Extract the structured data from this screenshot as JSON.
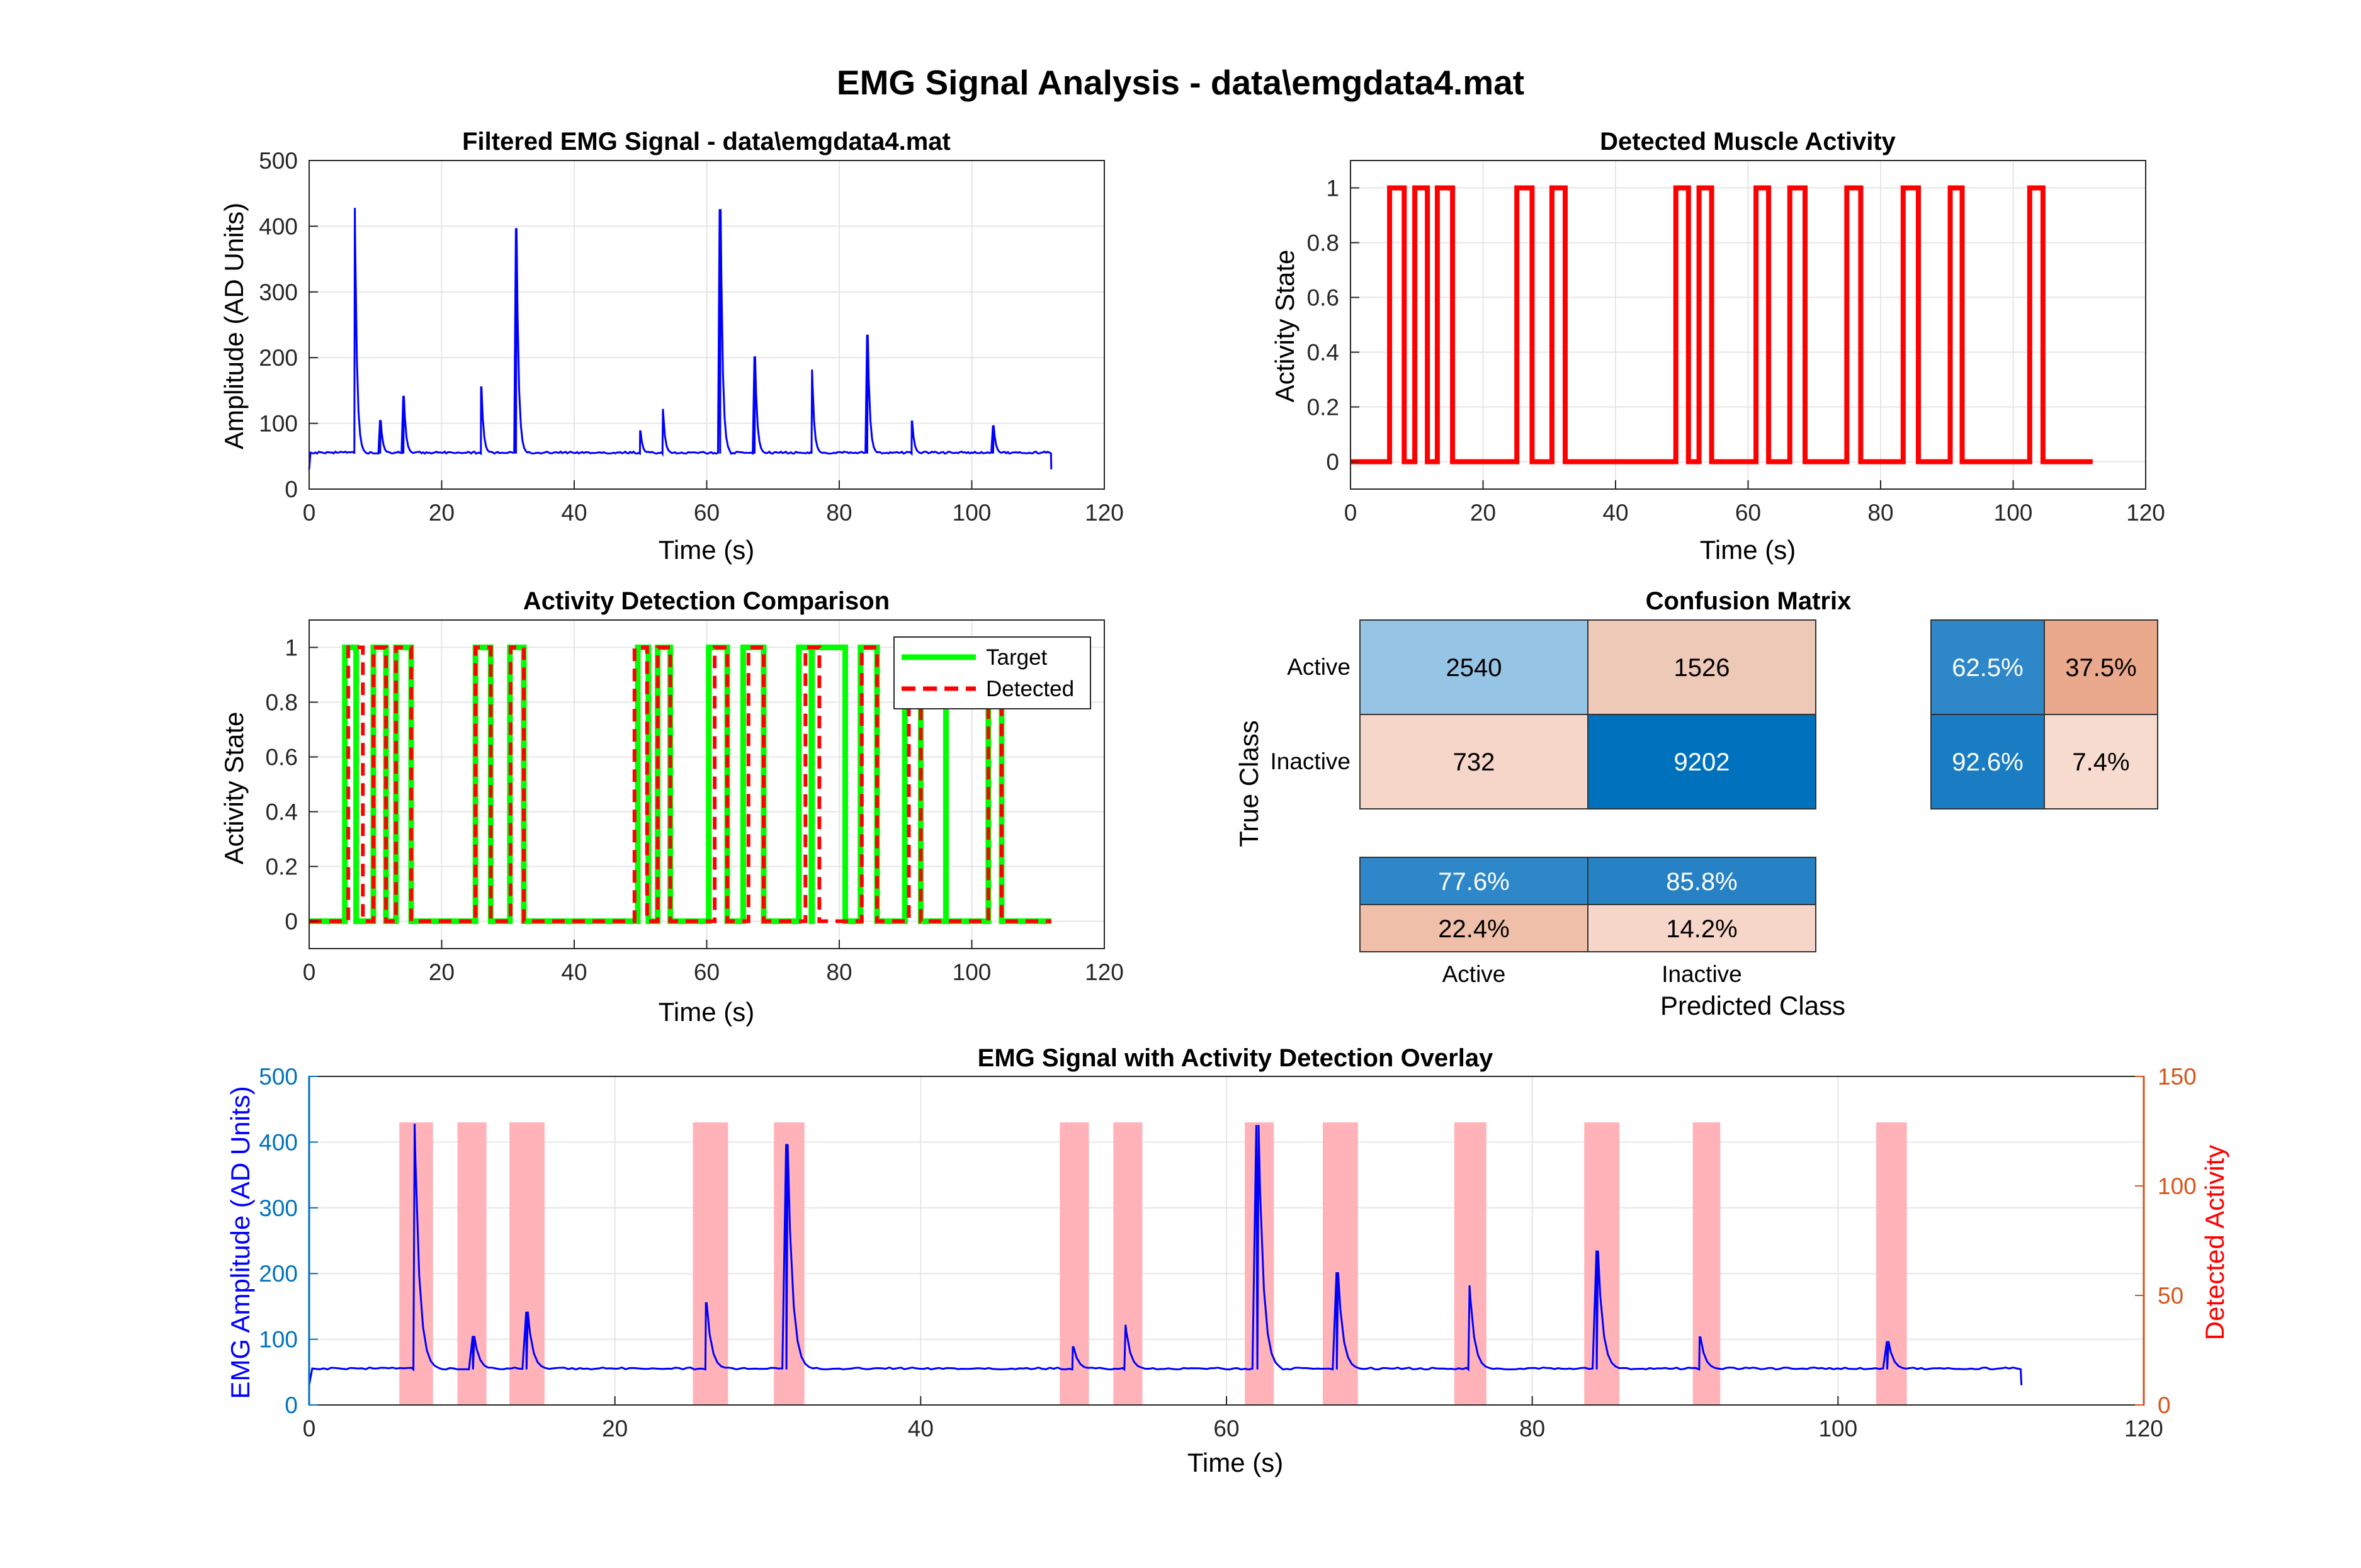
{
  "figure": {
    "title": "EMG Signal Analysis - data\\emgdata4.mat"
  },
  "colors": {
    "signal": "#0000ff",
    "activity": "#ff0000",
    "target": "#00ff00",
    "detected": "#ff0000",
    "overlay_fill": "#ffb3b8",
    "overlay_signal": "#5a00d6",
    "left_axis": "#0072bd",
    "right_axis": "#d95319",
    "right_label": "#ff0000",
    "left_label": "#0000ff",
    "grid": "#e6e6e6",
    "axis": "#262626"
  },
  "panels": {
    "filtered": {
      "title": "Filtered EMG Signal - data\\emgdata4.mat",
      "xlabel": "Time (s)",
      "ylabel": "Amplitude (AD Units)",
      "xticks": [
        "0",
        "20",
        "40",
        "60",
        "80",
        "100",
        "120"
      ],
      "yticks": [
        "0",
        "100",
        "200",
        "300",
        "400",
        "500"
      ]
    },
    "activity": {
      "title": "Detected Muscle Activity",
      "xlabel": "Time (s)",
      "ylabel": "Activity State",
      "xticks": [
        "0",
        "20",
        "40",
        "60",
        "80",
        "100",
        "120"
      ],
      "yticks": [
        "0",
        "0.2",
        "0.4",
        "0.6",
        "0.8",
        "1"
      ]
    },
    "comparison": {
      "title": "Activity Detection Comparison",
      "xlabel": "Time (s)",
      "ylabel": "Activity State",
      "xticks": [
        "0",
        "20",
        "40",
        "60",
        "80",
        "100",
        "120"
      ],
      "yticks": [
        "0",
        "0.2",
        "0.4",
        "0.6",
        "0.8",
        "1"
      ],
      "legend": {
        "target": "Target",
        "detected": "Detected"
      }
    },
    "confusion": {
      "title": "Confusion Matrix",
      "row_labels": [
        "Active",
        "Inactive"
      ],
      "col_labels": [
        "Active",
        "Inactive"
      ],
      "ylabel": "True Class",
      "xlabel": "Predicted Class",
      "cells": [
        [
          "2540",
          "1526"
        ],
        [
          "732",
          "9202"
        ]
      ],
      "row_summary": [
        [
          "62.5%",
          "37.5%"
        ],
        [
          "92.6%",
          "7.4%"
        ]
      ],
      "col_summary": [
        [
          "77.6%",
          "85.8%"
        ],
        [
          "22.4%",
          "14.2%"
        ]
      ]
    },
    "overlay": {
      "title": "EMG Signal with Activity Detection Overlay",
      "xlabel": "Time (s)",
      "ylabel_left": "EMG Amplitude (AD Units)",
      "ylabel_right": "Detected Activity",
      "xticks": [
        "0",
        "20",
        "40",
        "60",
        "80",
        "100",
        "120"
      ],
      "yticks_left": [
        "0",
        "100",
        "200",
        "300",
        "400",
        "500"
      ],
      "yticks_right": [
        "0",
        "50",
        "100",
        "150"
      ]
    }
  },
  "chart_data": [
    {
      "type": "line",
      "title": "Filtered EMG Signal - data\\emgdata4.mat",
      "xlabel": "Time (s)",
      "ylabel": "Amplitude (AD Units)",
      "xlim": [
        0,
        120
      ],
      "ylim": [
        0,
        500
      ],
      "grid": true,
      "series": [
        {
          "baseline": 54,
          "end_time": 112,
          "peaks": [
            {
              "x": 6.9,
              "y": 428
            },
            {
              "x": 10.8,
              "y": 105
            },
            {
              "x": 14.3,
              "y": 142
            },
            {
              "x": 26.0,
              "y": 155
            },
            {
              "x": 31.3,
              "y": 397
            },
            {
              "x": 50.0,
              "y": 88
            },
            {
              "x": 53.4,
              "y": 122
            },
            {
              "x": 62.1,
              "y": 426
            },
            {
              "x": 67.3,
              "y": 202
            },
            {
              "x": 75.9,
              "y": 182
            },
            {
              "x": 84.3,
              "y": 235
            },
            {
              "x": 91.0,
              "y": 103
            },
            {
              "x": 103.3,
              "y": 97
            }
          ]
        }
      ]
    },
    {
      "type": "line",
      "title": "Detected Muscle Activity",
      "xlabel": "Time (s)",
      "ylabel": "Activity State",
      "xlim": [
        0,
        120
      ],
      "ylim": [
        -0.1,
        1.1
      ],
      "grid": true,
      "end_time": 112,
      "series": [
        {
          "segments_on": [
            [
              5.9,
              8.1
            ],
            [
              9.7,
              11.6
            ],
            [
              13.1,
              15.4
            ],
            [
              25.1,
              27.4
            ],
            [
              30.4,
              32.4
            ],
            [
              49.1,
              51.0
            ],
            [
              52.6,
              54.5
            ],
            [
              61.2,
              63.1
            ],
            [
              66.3,
              68.6
            ],
            [
              74.9,
              77.0
            ],
            [
              83.4,
              85.7
            ],
            [
              90.5,
              92.3
            ],
            [
              102.5,
              104.5
            ]
          ]
        }
      ]
    },
    {
      "type": "line",
      "title": "Activity Detection Comparison",
      "xlabel": "Time (s)",
      "ylabel": "Activity State",
      "xlim": [
        0,
        120
      ],
      "ylim": [
        -0.1,
        1.1
      ],
      "grid": true,
      "legend": "top-right",
      "end_time": 112,
      "series": [
        {
          "name": "Target",
          "segments_on": [
            [
              5.4,
              7.1
            ],
            [
              9.7,
              11.6
            ],
            [
              13.1,
              15.4
            ],
            [
              25.1,
              27.4
            ],
            [
              30.3,
              32.4
            ],
            [
              49.6,
              51.2
            ],
            [
              52.6,
              54.5
            ],
            [
              60.3,
              63.1
            ],
            [
              65.5,
              68.6
            ],
            [
              73.9,
              75.8
            ],
            [
              75.9,
              80.9
            ],
            [
              83.2,
              85.7
            ],
            [
              89.9,
              92.3
            ],
            [
              96.1,
              96.1
            ],
            [
              102.5,
              104.5
            ]
          ]
        },
        {
          "name": "Detected",
          "segments_on": [
            [
              5.9,
              8.1
            ],
            [
              9.7,
              11.6
            ],
            [
              13.1,
              15.4
            ],
            [
              25.1,
              27.4
            ],
            [
              30.4,
              32.4
            ],
            [
              49.1,
              51.0
            ],
            [
              52.6,
              54.5
            ],
            [
              61.2,
              63.1
            ],
            [
              66.3,
              68.6
            ],
            [
              74.9,
              77.0
            ],
            [
              83.4,
              85.7
            ],
            [
              90.5,
              92.3
            ],
            [
              102.5,
              104.5
            ]
          ]
        }
      ]
    },
    {
      "type": "table",
      "title": "Confusion Matrix",
      "ylabel": "True Class",
      "xlabel": "Predicted Class",
      "rows": [
        "Active",
        "Inactive"
      ],
      "columns": [
        "Active",
        "Inactive"
      ],
      "values": [
        [
          2540,
          1526
        ],
        [
          732,
          9202
        ]
      ],
      "row_summary_percent": [
        [
          62.5,
          37.5
        ],
        [
          92.6,
          7.4
        ]
      ],
      "col_summary_percent": [
        [
          77.6,
          85.8
        ],
        [
          22.4,
          14.2
        ]
      ]
    },
    {
      "type": "line",
      "title": "EMG Signal with Activity Detection Overlay",
      "xlabel": "Time (s)",
      "ylabel": "EMG Amplitude (AD Units)",
      "ylabel_right": "Detected Activity",
      "xlim": [
        0,
        120
      ],
      "ylim": [
        0,
        500
      ],
      "ylim_right": [
        0,
        150
      ],
      "grid": true,
      "overlay_height_right": 129,
      "overlay_spans": [
        [
          5.9,
          8.1
        ],
        [
          9.7,
          11.6
        ],
        [
          13.1,
          15.4
        ],
        [
          25.1,
          27.4
        ],
        [
          30.4,
          32.4
        ],
        [
          49.1,
          51.0
        ],
        [
          52.6,
          54.5
        ],
        [
          61.2,
          63.1
        ],
        [
          66.3,
          68.6
        ],
        [
          74.9,
          77.0
        ],
        [
          83.4,
          85.7
        ],
        [
          90.5,
          92.3
        ],
        [
          102.5,
          104.5
        ]
      ]
    }
  ]
}
